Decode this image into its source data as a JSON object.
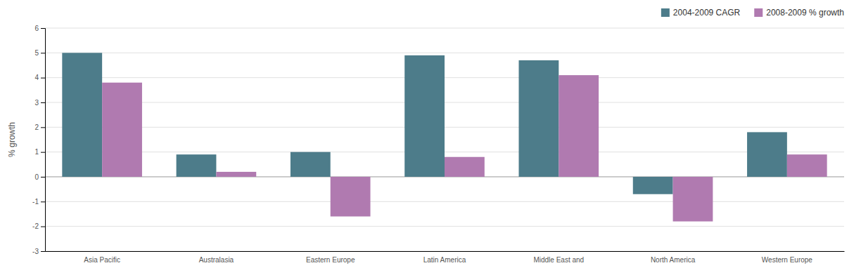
{
  "chart_data": {
    "type": "bar",
    "y_label": "% growth",
    "categories": [
      "Asia Pacific",
      "Australasia",
      "Eastern Europe",
      "Latin America",
      "Middle East and",
      "North America",
      "Western Europe"
    ],
    "series": [
      {
        "name": "2004-2009 CAGR",
        "color": "#4d7c8a",
        "values": [
          5.0,
          0.9,
          1.0,
          4.9,
          4.7,
          -0.7,
          1.8
        ]
      },
      {
        "name": "2008-2009 % growth",
        "color": "#b07ab0",
        "values": [
          3.8,
          0.2,
          -1.6,
          0.8,
          4.1,
          -1.8,
          0.9
        ]
      }
    ],
    "ylim": [
      -3,
      6
    ],
    "yticks": [
      -3,
      -2,
      -1,
      0,
      1,
      2,
      3,
      4,
      5,
      6
    ],
    "grid": true,
    "legend": "top-right"
  }
}
